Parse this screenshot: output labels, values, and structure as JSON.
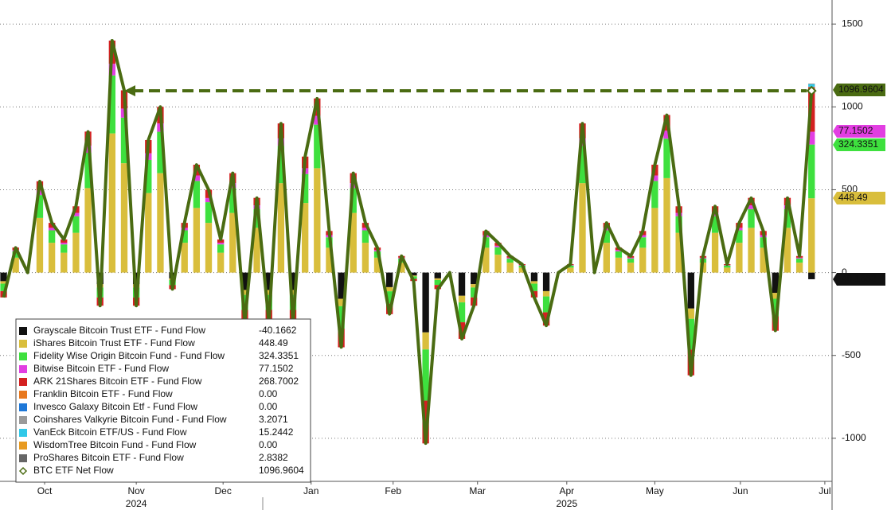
{
  "chart_data": {
    "type": "bar",
    "x": [
      0,
      1,
      2,
      3,
      4,
      5,
      6,
      7,
      8,
      9,
      10,
      11,
      12,
      13,
      14,
      15,
      16,
      17,
      18,
      19,
      20,
      21,
      22,
      23,
      24,
      25,
      26,
      27,
      28,
      29,
      30,
      31,
      32,
      33,
      34,
      35,
      36,
      37,
      38,
      39,
      40,
      41,
      42,
      43,
      44,
      45,
      46,
      47,
      48,
      49,
      50,
      51,
      52,
      53,
      54,
      55,
      56,
      57,
      58,
      59,
      60,
      61,
      62,
      63,
      64,
      65,
      66,
      67
    ],
    "xlim": [
      -0.3,
      68.7
    ],
    "xticks": [
      {
        "value": 3.4,
        "label": "Oct"
      },
      {
        "value": 11,
        "label": "Nov"
      },
      {
        "value": 18.2,
        "label": "Dec"
      },
      {
        "value": 25.5,
        "label": "Jan"
      },
      {
        "value": 32.3,
        "label": "Feb"
      },
      {
        "value": 39.3,
        "label": "Mar"
      },
      {
        "value": 46.7,
        "label": "Apr"
      },
      {
        "value": 54,
        "label": "May"
      },
      {
        "value": 61.1,
        "label": "Jun"
      },
      {
        "value": 68.1,
        "label": "Jul"
      }
    ],
    "year_labels": [
      {
        "value": 11,
        "label": "2024"
      },
      {
        "value": 46.7,
        "label": "2025"
      }
    ],
    "ylim": [
      -1260,
      1645
    ],
    "yticks": [
      -1000,
      -500,
      0,
      500,
      1000,
      1500
    ],
    "grid": true,
    "series": [
      {
        "name": "Grayscale Bitcoin Trust ETF - Fund Flow",
        "color": "#111111",
        "legend_value": "-40.1662",
        "values": [
          -52,
          0,
          0,
          0,
          0,
          0,
          0,
          0,
          -70,
          0,
          0,
          -70,
          0,
          0,
          -35,
          0,
          0,
          0,
          0,
          0,
          -105,
          0,
          -105,
          0,
          -105,
          0,
          0,
          0,
          -158,
          0,
          0,
          0,
          -88,
          0,
          -18,
          -361,
          -35,
          0,
          -140,
          -70,
          0,
          0,
          0,
          0,
          -52,
          -112,
          0,
          0,
          0,
          0,
          0,
          0,
          0,
          0,
          0,
          0,
          0,
          -217,
          0,
          0,
          0,
          0,
          0,
          0,
          -123,
          0,
          0,
          -40.1662
        ]
      },
      {
        "name": "iShares Bitcoin Trust ETF - Fund Flow",
        "color": "#d9be3c",
        "legend_value": "448.49",
        "values": [
          -15,
          90,
          0,
          330,
          180,
          120,
          240,
          510,
          -20,
          840,
          660,
          -20,
          480,
          600,
          -10,
          180,
          390,
          300,
          120,
          360,
          -30,
          270,
          -30,
          540,
          -30,
          420,
          630,
          150,
          -45,
          360,
          180,
          90,
          -25,
          60,
          -5,
          -103,
          -10,
          0,
          -40,
          -20,
          150,
          108,
          60,
          30,
          -15,
          -32,
          0,
          30,
          540,
          0,
          180,
          90,
          60,
          150,
          390,
          570,
          240,
          -62,
          60,
          240,
          30,
          180,
          270,
          150,
          -35,
          270,
          60,
          448.49
        ]
      },
      {
        "name": "Fidelity Wise Origin Bitcoin Fund - Fund Flow",
        "color": "#3ee03e",
        "legend_value": "324.3351",
        "values": [
          -45,
          38,
          0,
          138,
          75,
          50,
          100,
          213,
          -60,
          350,
          275,
          -60,
          200,
          250,
          -30,
          75,
          163,
          125,
          50,
          150,
          -90,
          113,
          -90,
          225,
          -90,
          175,
          263,
          63,
          -135,
          150,
          75,
          38,
          -75,
          25,
          -15,
          -309,
          -30,
          0,
          -120,
          -60,
          63,
          45,
          25,
          13,
          -45,
          -96,
          0,
          13,
          225,
          0,
          75,
          38,
          25,
          63,
          163,
          238,
          100,
          -186,
          25,
          100,
          13,
          75,
          113,
          63,
          -105,
          113,
          25,
          324.3351
        ]
      },
      {
        "name": "Bitwise Bitcoin ETF - Fund Flow",
        "color": "#e23ee2",
        "legend_value": "77.1502",
        "values": [
          0,
          8,
          0,
          28,
          15,
          10,
          20,
          43,
          0,
          70,
          55,
          0,
          40,
          50,
          0,
          15,
          33,
          25,
          10,
          30,
          0,
          23,
          0,
          45,
          0,
          35,
          53,
          13,
          0,
          30,
          15,
          8,
          0,
          5,
          0,
          0,
          0,
          0,
          0,
          0,
          13,
          9,
          5,
          3,
          0,
          0,
          0,
          3,
          45,
          0,
          15,
          8,
          5,
          13,
          33,
          48,
          20,
          0,
          5,
          20,
          3,
          15,
          23,
          13,
          0,
          23,
          5,
          77.1502
        ]
      },
      {
        "name": "ARK 21Shares Bitcoin ETF - Fund Flow",
        "color": "#d42020",
        "legend_value": "268.7002",
        "values": [
          -38,
          15,
          0,
          55,
          30,
          20,
          40,
          85,
          -50,
          140,
          110,
          -50,
          80,
          100,
          -25,
          30,
          65,
          50,
          20,
          60,
          -75,
          45,
          -75,
          90,
          -75,
          70,
          105,
          25,
          -113,
          60,
          30,
          15,
          -63,
          10,
          -13,
          -258,
          -25,
          0,
          -100,
          -50,
          25,
          18,
          10,
          5,
          -38,
          -80,
          0,
          5,
          90,
          0,
          30,
          15,
          10,
          25,
          65,
          95,
          40,
          -155,
          10,
          40,
          5,
          30,
          45,
          25,
          -88,
          45,
          10,
          268.7002
        ]
      },
      {
        "name": "Franklin Bitcoin ETF - Fund Flow",
        "color": "#e8781e",
        "legend_value": "0.00",
        "values": [
          0,
          0,
          0,
          0,
          0,
          0,
          0,
          0,
          0,
          0,
          0,
          0,
          0,
          0,
          0,
          0,
          0,
          0,
          0,
          0,
          0,
          0,
          0,
          0,
          0,
          0,
          0,
          0,
          0,
          0,
          0,
          0,
          0,
          0,
          0,
          0,
          0,
          0,
          0,
          0,
          0,
          0,
          0,
          0,
          0,
          0,
          0,
          0,
          0,
          0,
          0,
          0,
          0,
          0,
          0,
          0,
          0,
          0,
          0,
          0,
          0,
          0,
          0,
          0,
          0,
          0,
          0,
          0
        ]
      },
      {
        "name": "Invesco Galaxy Bitcoin Etf - Fund Flow",
        "color": "#1e78d8",
        "legend_value": "0.00",
        "values": [
          0,
          0,
          0,
          0,
          0,
          0,
          0,
          0,
          0,
          0,
          0,
          0,
          0,
          0,
          0,
          0,
          0,
          0,
          0,
          0,
          0,
          0,
          0,
          0,
          0,
          0,
          0,
          0,
          0,
          0,
          0,
          0,
          0,
          0,
          0,
          0,
          0,
          0,
          0,
          0,
          0,
          0,
          0,
          0,
          0,
          0,
          0,
          0,
          0,
          0,
          0,
          0,
          0,
          0,
          0,
          0,
          0,
          0,
          0,
          0,
          0,
          0,
          0,
          0,
          0,
          0,
          0,
          0
        ]
      },
      {
        "name": "Coinshares Valkyrie Bitcoin Fund - Fund Flow",
        "color": "#9a9a9a",
        "legend_value": "3.2071",
        "values": [
          0,
          0,
          0,
          0,
          0,
          0,
          0,
          0,
          0,
          0,
          0,
          0,
          0,
          0,
          0,
          0,
          0,
          0,
          0,
          0,
          0,
          0,
          0,
          0,
          0,
          0,
          0,
          0,
          0,
          0,
          0,
          0,
          0,
          0,
          0,
          0,
          0,
          0,
          0,
          0,
          0,
          0,
          0,
          0,
          0,
          0,
          0,
          0,
          0,
          0,
          0,
          0,
          0,
          0,
          0,
          0,
          0,
          0,
          0,
          0,
          0,
          0,
          0,
          0,
          0,
          0,
          0,
          3.2071
        ]
      },
      {
        "name": "VanEck Bitcoin ETF/US - Fund Flow",
        "color": "#30c8e8",
        "legend_value": "15.2442",
        "values": [
          0,
          0,
          0,
          0,
          0,
          0,
          0,
          0,
          0,
          0,
          0,
          0,
          0,
          0,
          0,
          0,
          0,
          0,
          0,
          0,
          0,
          0,
          0,
          0,
          0,
          0,
          0,
          0,
          0,
          0,
          0,
          0,
          0,
          0,
          0,
          0,
          0,
          0,
          0,
          0,
          0,
          0,
          0,
          0,
          0,
          0,
          0,
          0,
          0,
          0,
          0,
          0,
          0,
          0,
          0,
          0,
          0,
          0,
          0,
          0,
          0,
          0,
          0,
          0,
          0,
          0,
          0,
          15.2442
        ]
      },
      {
        "name": "WisdomTree Bitcoin Fund - Fund Flow",
        "color": "#e89a20",
        "legend_value": "0.00",
        "values": [
          0,
          0,
          0,
          0,
          0,
          0,
          0,
          0,
          0,
          0,
          0,
          0,
          0,
          0,
          0,
          0,
          0,
          0,
          0,
          0,
          0,
          0,
          0,
          0,
          0,
          0,
          0,
          0,
          0,
          0,
          0,
          0,
          0,
          0,
          0,
          0,
          0,
          0,
          0,
          0,
          0,
          0,
          0,
          0,
          0,
          0,
          0,
          0,
          0,
          0,
          0,
          0,
          0,
          0,
          0,
          0,
          0,
          0,
          0,
          0,
          0,
          0,
          0,
          0,
          0,
          0,
          0,
          0
        ]
      },
      {
        "name": "ProShares Bitcoin ETF - Fund Flow",
        "color": "#666666",
        "legend_value": "2.8382",
        "values": [
          0,
          0,
          0,
          0,
          0,
          0,
          0,
          0,
          0,
          0,
          0,
          0,
          0,
          0,
          0,
          0,
          0,
          0,
          0,
          0,
          0,
          0,
          0,
          0,
          0,
          0,
          0,
          0,
          0,
          0,
          0,
          0,
          0,
          0,
          0,
          0,
          0,
          0,
          0,
          0,
          0,
          0,
          0,
          0,
          0,
          0,
          0,
          0,
          0,
          0,
          0,
          0,
          0,
          0,
          0,
          0,
          0,
          0,
          0,
          0,
          0,
          0,
          0,
          0,
          0,
          0,
          0,
          2.8382
        ]
      },
      {
        "name": "BTC ETF Net Flow",
        "type": "line",
        "color": "#4a6b12",
        "legend_value": "1096.9604",
        "values": [
          -150,
          150,
          0,
          550,
          300,
          200,
          400,
          850,
          -200,
          1400,
          1100,
          -200,
          800,
          1000,
          -100,
          300,
          650,
          500,
          200,
          600,
          -300,
          450,
          -300,
          900,
          -300,
          700,
          1050,
          250,
          -450,
          600,
          300,
          150,
          -250,
          100,
          -50,
          -1030,
          -100,
          0,
          -400,
          -200,
          250,
          180,
          100,
          50,
          -150,
          -320,
          0,
          50,
          900,
          0,
          300,
          150,
          100,
          250,
          650,
          950,
          400,
          -620,
          100,
          400,
          50,
          300,
          450,
          250,
          -350,
          450,
          100,
          1096.9604
        ]
      }
    ]
  }
}
